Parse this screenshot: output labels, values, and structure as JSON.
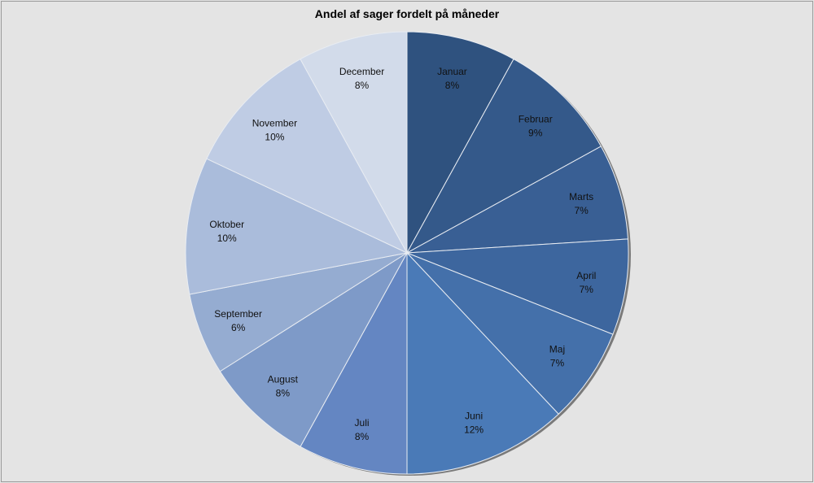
{
  "chart_data": {
    "type": "pie",
    "title": "Andel af sager fordelt på måneder",
    "categories": [
      "Januar",
      "Februar",
      "Marts",
      "April",
      "Maj",
      "Juni",
      "Juli",
      "August",
      "September",
      "Oktober",
      "November",
      "December"
    ],
    "values": [
      8,
      9,
      7,
      7,
      7,
      12,
      8,
      8,
      6,
      10,
      10,
      8
    ],
    "value_labels": [
      "8%",
      "9%",
      "7%",
      "7%",
      "7%",
      "12%",
      "8%",
      "8%",
      "6%",
      "10%",
      "10%",
      "8%"
    ],
    "colors": [
      "#2f527f",
      "#34598a",
      "#395f94",
      "#3d669e",
      "#4470aa",
      "#4a7ab7",
      "#6486c2",
      "#7e9ac8",
      "#95acd1",
      "#aabcdb",
      "#bfcce4",
      "#d2dbea"
    ],
    "start_angle": "12 o'clock",
    "direction": "clockwise",
    "legend": "none",
    "labels_position": "inside"
  }
}
